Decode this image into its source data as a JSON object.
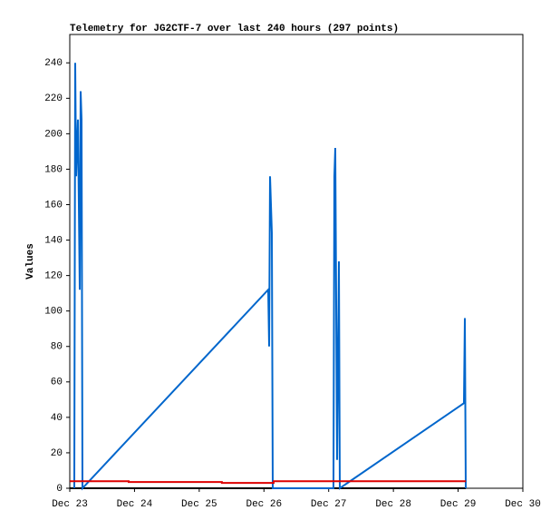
{
  "chart_data": {
    "type": "line",
    "title": "Telemetry for JG2CTF-7 over last 240 hours (297 points)",
    "y_label": "Values",
    "xlim": [
      23,
      30
    ],
    "xticks": [
      {
        "value": 23,
        "label": "Dec 23"
      },
      {
        "value": 24,
        "label": "Dec 24"
      },
      {
        "value": 25,
        "label": "Dec 25"
      },
      {
        "value": 26,
        "label": "Dec 26"
      },
      {
        "value": 27,
        "label": "Dec 27"
      },
      {
        "value": 28,
        "label": "Dec 28"
      },
      {
        "value": 29,
        "label": "Dec 29"
      },
      {
        "value": 30,
        "label": "Dec 30"
      }
    ],
    "ylim": [
      0,
      256
    ],
    "yticks": [
      0,
      20,
      40,
      60,
      80,
      100,
      120,
      140,
      160,
      180,
      200,
      220,
      240
    ],
    "grid": false,
    "series": [
      {
        "color": "#000000",
        "x": [
          23.0,
          29.12
        ],
        "values": [
          0,
          0
        ]
      },
      {
        "color": "#0066cc",
        "x": [
          23.07,
          23.084,
          23.098,
          23.126,
          23.154,
          23.168,
          23.182,
          23.196,
          26.066,
          26.08,
          26.094,
          26.122,
          26.136,
          27.074,
          27.088,
          27.102,
          27.13,
          27.158,
          27.172,
          29.09,
          29.104,
          29.118
        ],
        "values": [
          0,
          240,
          176,
          208,
          112,
          224,
          208,
          0,
          112,
          80,
          176,
          144,
          0,
          0,
          176,
          192,
          16,
          128,
          0,
          48,
          96,
          0
        ]
      },
      {
        "color": "#dd0000",
        "x": [
          23.0,
          23.91,
          23.91,
          25.35,
          25.35,
          26.15,
          26.15,
          29.12
        ],
        "values": [
          4,
          4,
          3.5,
          3.5,
          3,
          3,
          4,
          4
        ]
      }
    ]
  }
}
